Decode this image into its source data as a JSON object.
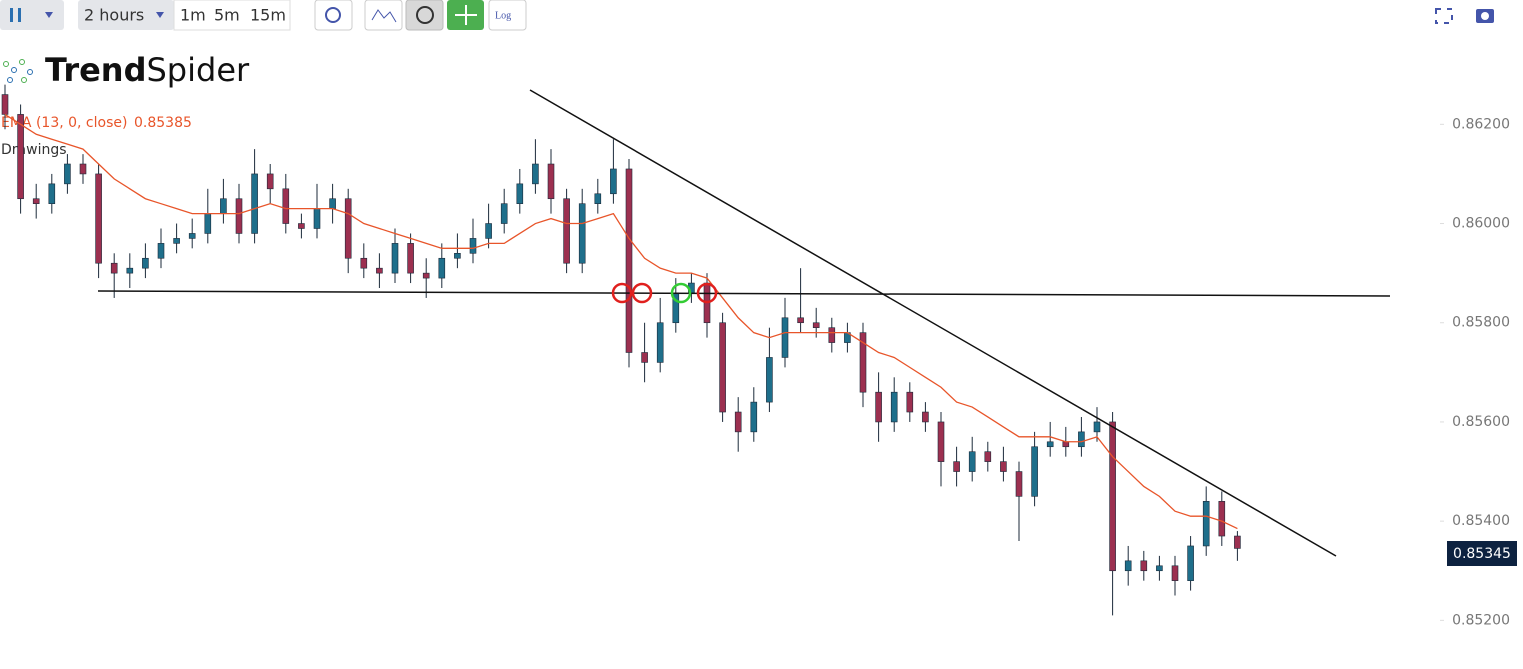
{
  "toolbar": {
    "interval": "2 hours",
    "buttons": [
      "1m",
      "5m",
      "15m"
    ],
    "log": "Log"
  },
  "logo": {
    "bold": "Trend",
    "light": "Spider"
  },
  "legend": {
    "drawings": "Drawings"
  },
  "chart_data": {
    "type": "candlestick",
    "up_color": "#1f6f8b",
    "down_color": "#9c3050",
    "wick_color": "#1b2a3a",
    "open": [
      0.8626,
      0.8622,
      0.8605,
      0.8604,
      0.8608,
      0.8612,
      0.861,
      0.8592,
      0.859,
      0.8591,
      0.8593,
      0.8596,
      0.8597,
      0.8598,
      0.8602,
      0.8605,
      0.8598,
      0.861,
      0.8607,
      0.86,
      0.8599,
      0.8603,
      0.8605,
      0.8593,
      0.8591,
      0.859,
      0.8596,
      0.859,
      0.8589,
      0.8593,
      0.8594,
      0.8597,
      0.86,
      0.8604,
      0.8608,
      0.8612,
      0.8605,
      0.8592,
      0.8604,
      0.8606,
      0.8611,
      0.8574,
      0.8572,
      0.858,
      0.8586,
      0.8588,
      0.858,
      0.8562,
      0.8558,
      0.8564,
      0.8573,
      0.8581,
      0.858,
      0.8579,
      0.8576,
      0.8578,
      0.8566,
      0.856,
      0.8566,
      0.8562,
      0.856,
      0.8552,
      0.855,
      0.8554,
      0.8552,
      0.855,
      0.8545,
      0.8555,
      0.8556,
      0.8555,
      0.8558,
      0.856,
      0.853,
      0.8532,
      0.853,
      0.8531,
      0.8528,
      0.8535,
      0.8544,
      0.8537
    ],
    "high": [
      0.8628,
      0.8624,
      0.8608,
      0.861,
      0.8614,
      0.8614,
      0.8612,
      0.8594,
      0.8594,
      0.8596,
      0.8599,
      0.86,
      0.8601,
      0.8607,
      0.8609,
      0.8608,
      0.8615,
      0.8612,
      0.861,
      0.8602,
      0.8608,
      0.8608,
      0.8607,
      0.8596,
      0.8594,
      0.8599,
      0.8598,
      0.8593,
      0.8596,
      0.8598,
      0.8601,
      0.8604,
      0.8607,
      0.8611,
      0.8617,
      0.8615,
      0.8607,
      0.8607,
      0.8609,
      0.8617,
      0.8613,
      0.858,
      0.8585,
      0.8589,
      0.859,
      0.859,
      0.8582,
      0.8565,
      0.8567,
      0.8579,
      0.8585,
      0.8591,
      0.8583,
      0.8581,
      0.858,
      0.858,
      0.857,
      0.8569,
      0.8568,
      0.8564,
      0.8562,
      0.8555,
      0.8557,
      0.8556,
      0.8555,
      0.8552,
      0.8558,
      0.856,
      0.8559,
      0.8561,
      0.8563,
      0.8562,
      0.8535,
      0.8534,
      0.8533,
      0.8533,
      0.8537,
      0.8547,
      0.8546,
      0.8538
    ],
    "low": [
      0.8619,
      0.8602,
      0.8601,
      0.8602,
      0.8606,
      0.8608,
      0.8589,
      0.8585,
      0.8587,
      0.8589,
      0.8591,
      0.8594,
      0.8595,
      0.8596,
      0.86,
      0.8596,
      0.8596,
      0.8604,
      0.8598,
      0.8597,
      0.8597,
      0.86,
      0.859,
      0.8589,
      0.8587,
      0.8588,
      0.8588,
      0.8585,
      0.8587,
      0.8591,
      0.8592,
      0.8595,
      0.8598,
      0.8602,
      0.8606,
      0.8602,
      0.859,
      0.859,
      0.8602,
      0.8604,
      0.8571,
      0.8568,
      0.857,
      0.8578,
      0.8584,
      0.8577,
      0.856,
      0.8554,
      0.8556,
      0.8562,
      0.8571,
      0.8578,
      0.8577,
      0.8574,
      0.8574,
      0.8563,
      0.8556,
      0.8558,
      0.856,
      0.8558,
      0.8547,
      0.8547,
      0.8548,
      0.855,
      0.8548,
      0.8536,
      0.8543,
      0.8553,
      0.8553,
      0.8553,
      0.8556,
      0.8521,
      0.8527,
      0.8528,
      0.8528,
      0.8525,
      0.8526,
      0.8533,
      0.8535,
      0.8532
    ],
    "close": [
      0.8622,
      0.8605,
      0.8604,
      0.8608,
      0.8612,
      0.861,
      0.8592,
      0.859,
      0.8591,
      0.8593,
      0.8596,
      0.8597,
      0.8598,
      0.8602,
      0.8605,
      0.8598,
      0.861,
      0.8607,
      0.86,
      0.8599,
      0.8603,
      0.8605,
      0.8593,
      0.8591,
      0.859,
      0.8596,
      0.859,
      0.8589,
      0.8593,
      0.8594,
      0.8597,
      0.86,
      0.8604,
      0.8608,
      0.8612,
      0.8605,
      0.8592,
      0.8604,
      0.8606,
      0.8611,
      0.8574,
      0.8572,
      0.858,
      0.8586,
      0.8588,
      0.858,
      0.8562,
      0.8558,
      0.8564,
      0.8573,
      0.8581,
      0.858,
      0.8579,
      0.8576,
      0.8578,
      0.8566,
      0.856,
      0.8566,
      0.8562,
      0.856,
      0.8552,
      0.855,
      0.8554,
      0.8552,
      0.855,
      0.8545,
      0.8555,
      0.8556,
      0.8555,
      0.8558,
      0.856,
      0.853,
      0.8532,
      0.853,
      0.8531,
      0.8528,
      0.8535,
      0.8544,
      0.8537,
      0.85345
    ],
    "series": [
      {
        "name": "EMA (13, 0, close)",
        "color": "#e8552a",
        "values": [
          0.8622,
          0.862,
          0.8618,
          0.8617,
          0.8616,
          0.8615,
          0.8612,
          0.8609,
          0.8607,
          0.8605,
          0.8604,
          0.8603,
          0.8602,
          0.8602,
          0.8602,
          0.8602,
          0.8603,
          0.8604,
          0.8603,
          0.8603,
          0.8603,
          0.8603,
          0.8602,
          0.86,
          0.8599,
          0.8598,
          0.8597,
          0.8596,
          0.8595,
          0.8595,
          0.8595,
          0.8596,
          0.8596,
          0.8598,
          0.86,
          0.8601,
          0.86,
          0.86,
          0.8601,
          0.8602,
          0.8597,
          0.8593,
          0.8591,
          0.859,
          0.859,
          0.8589,
          0.8585,
          0.8581,
          0.8578,
          0.8577,
          0.8578,
          0.8578,
          0.8578,
          0.8578,
          0.8578,
          0.8576,
          0.8574,
          0.8573,
          0.8571,
          0.8569,
          0.8567,
          0.8564,
          0.8563,
          0.8561,
          0.8559,
          0.8557,
          0.8557,
          0.8557,
          0.8556,
          0.8556,
          0.8557,
          0.8553,
          0.855,
          0.8547,
          0.8545,
          0.8542,
          0.8541,
          0.8541,
          0.854,
          0.85385
        ]
      }
    ],
    "ylim": [
      0.8511,
      0.8637
    ],
    "yticks": [
      {
        "value": 0.852,
        "label": "0.85200"
      },
      {
        "value": 0.854,
        "label": "0.85400"
      },
      {
        "value": 0.856,
        "label": "0.85600"
      },
      {
        "value": 0.858,
        "label": "0.85800"
      },
      {
        "value": 0.86,
        "label": "0.86000"
      },
      {
        "value": 0.862,
        "label": "0.86200"
      }
    ]
  }
}
